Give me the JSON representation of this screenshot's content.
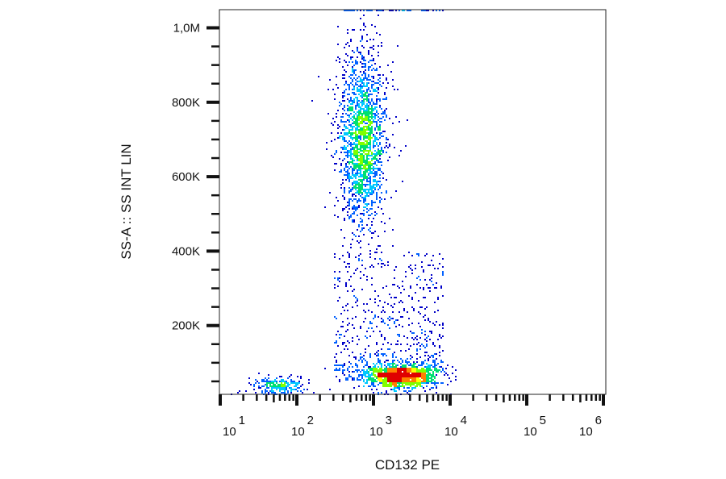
{
  "chart_data": {
    "type": "scatter",
    "subtype": "flow cytometry density dot plot",
    "xlabel": "CD132 PE",
    "ylabel": "SS-A :: SS INT LIN",
    "x_scale": "log",
    "xlim": [
      10,
      1000000
    ],
    "ylim": [
      0,
      1050000
    ],
    "x_ticks": [
      {
        "base": "10",
        "exp": "1",
        "value": 10
      },
      {
        "base": "10",
        "exp": "2",
        "value": 100
      },
      {
        "base": "10",
        "exp": "3",
        "value": 1000
      },
      {
        "base": "10",
        "exp": "4",
        "value": 10000
      },
      {
        "base": "10",
        "exp": "5",
        "value": 100000
      },
      {
        "base": "10",
        "exp": "6",
        "value": 1000000
      }
    ],
    "y_ticks": [
      {
        "label": "200K",
        "value": 200000
      },
      {
        "label": "400K",
        "value": 400000
      },
      {
        "label": "600K",
        "value": 600000
      },
      {
        "label": "800K",
        "value": 800000
      },
      {
        "label": "1,0M",
        "value": 1000000
      }
    ],
    "grid": false,
    "colormap": [
      "#0000c8",
      "#0060ff",
      "#00c8ff",
      "#00e070",
      "#80ff00",
      "#ffff00",
      "#ff8000",
      "#e00000"
    ],
    "populations": [
      {
        "x_center": 2200,
        "y_center": 65000,
        "x_spread_decades": 0.2,
        "y_spread": 16000,
        "relative_count": 1500
      },
      {
        "x_center": 700,
        "y_center": 700000,
        "x_spread_decades": 0.12,
        "y_spread": 120000,
        "relative_count": 2000
      },
      {
        "x_center": 56,
        "y_center": 40000,
        "x_spread_decades": 0.15,
        "y_spread": 12000,
        "relative_count": 250
      },
      {
        "x_range": [
          300,
          8000
        ],
        "y_range": [
          80000,
          400000
        ],
        "relative_count": 600
      },
      {
        "x_range": [
          400,
          8000
        ],
        "y_center": 1050000,
        "note_saturated": true,
        "relative_count": 60
      }
    ]
  }
}
